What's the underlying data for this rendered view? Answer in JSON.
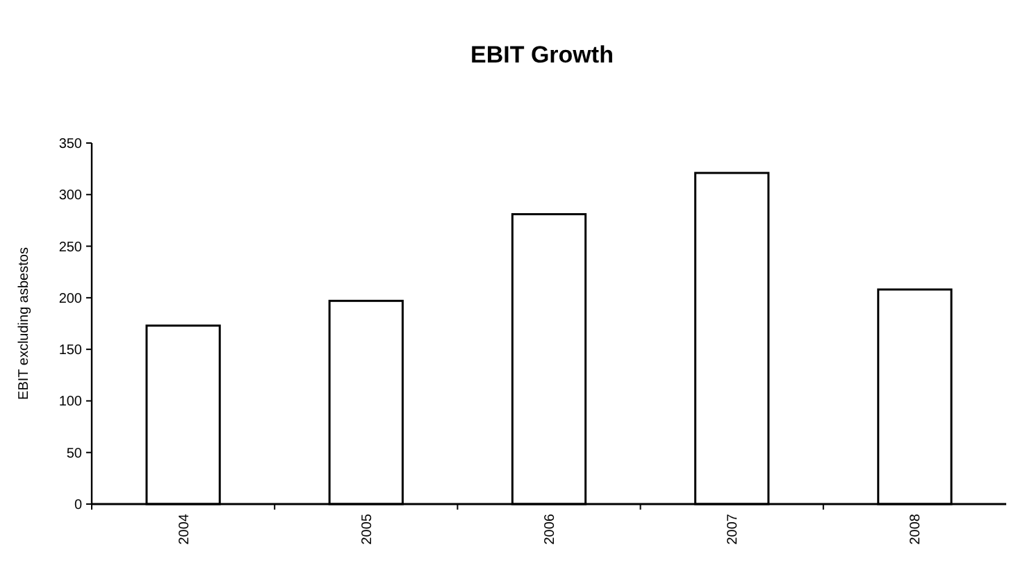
{
  "chart_data": {
    "type": "bar",
    "title": "EBIT Growth",
    "ylabel": "EBIT excluding asbestos",
    "categories": [
      "2004",
      "2005",
      "2006",
      "2007",
      "2008"
    ],
    "values": [
      173,
      197,
      281,
      321,
      208
    ],
    "color": "#ffffff",
    "ylim": [
      0,
      350
    ],
    "yticks": [
      0,
      50,
      100,
      150,
      200,
      250,
      300,
      350
    ],
    "grid": false
  }
}
